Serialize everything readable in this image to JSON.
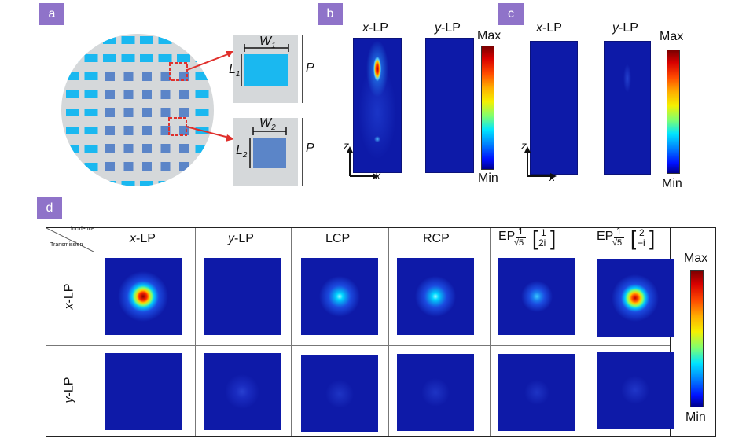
{
  "panels": {
    "a": {
      "label": "a",
      "W1": "W",
      "W1_sub": "1",
      "L1": "L",
      "L1_sub": "1",
      "W2": "W",
      "W2_sub": "2",
      "L2": "L",
      "L2_sub": "2",
      "P": "P",
      "colors": {
        "disk": "#d5d8da",
        "cyan_pillar": "#1ab8f0",
        "blue_pillar": "#5b85c8",
        "highlight": "#e0302c"
      }
    },
    "b": {
      "label": "b",
      "col1": "x",
      "col1_suffix": "-LP",
      "col2": "y",
      "col2_suffix": "-LP",
      "max": "Max",
      "min": "Min",
      "axis_z": "z",
      "axis_x": "x"
    },
    "c": {
      "label": "c",
      "col1": "x",
      "col1_suffix": "-LP",
      "col2": "y",
      "col2_suffix": "-LP",
      "max": "Max",
      "min": "Min",
      "axis_z": "z",
      "axis_x": "x"
    },
    "d": {
      "label": "d",
      "corner_top": "Incidence",
      "corner_bottom": "Transmission",
      "columns": [
        {
          "prefix": "x",
          "suffix": "-LP"
        },
        {
          "prefix": "y",
          "suffix": "-LP"
        },
        {
          "prefix": "",
          "suffix": "LCP"
        },
        {
          "prefix": "",
          "suffix": "RCP"
        },
        {
          "prefix": "",
          "suffix": "EP",
          "frac": "1",
          "root": "√5",
          "vec_top": "1",
          "vec_bottom": "2i"
        },
        {
          "prefix": "",
          "suffix": "EP",
          "frac": "1",
          "root": "√5",
          "vec_top": "2",
          "vec_bottom": "−i"
        }
      ],
      "rows": [
        {
          "prefix": "x",
          "suffix": "-LP"
        },
        {
          "prefix": "y",
          "suffix": "-LP"
        }
      ],
      "max": "Max",
      "min": "Min"
    }
  }
}
